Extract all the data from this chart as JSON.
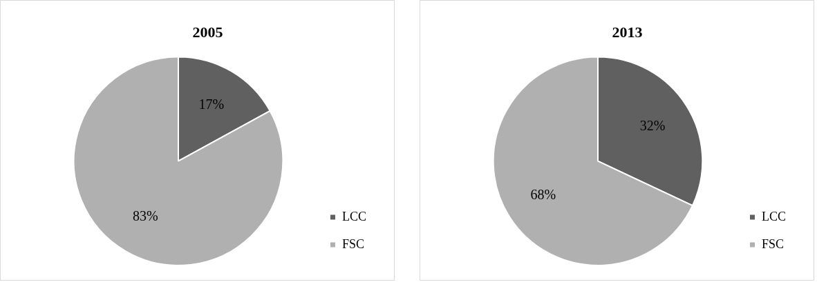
{
  "chart_data": [
    {
      "type": "pie",
      "title": "2005",
      "categories": [
        "LCC",
        "FSC"
      ],
      "values": [
        17,
        83
      ],
      "colors": [
        "#606060",
        "#b0b0b0"
      ],
      "value_labels": [
        "17%",
        "83%"
      ],
      "legend": "right"
    },
    {
      "type": "pie",
      "title": "2013",
      "categories": [
        "LCC",
        "FSC"
      ],
      "values": [
        32,
        68
      ],
      "colors": [
        "#606060",
        "#b0b0b0"
      ],
      "value_labels": [
        "32%",
        "68%"
      ],
      "legend": "right"
    }
  ]
}
